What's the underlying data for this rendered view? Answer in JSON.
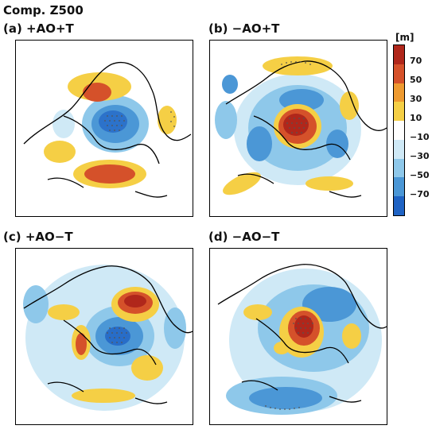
{
  "figure_title": "Comp. Z500",
  "panels": [
    {
      "label": "(a) +AO+T"
    },
    {
      "label": "(b) −AO+T"
    },
    {
      "label": "(c) +AO−T"
    },
    {
      "label": "(d) −AO−T"
    }
  ],
  "colorbar": {
    "unit": "[m]",
    "tick_labels": [
      "70",
      "50",
      "30",
      "10",
      "−10",
      "−30",
      "−50",
      "−70"
    ],
    "colors": [
      "#b0271b",
      "#d5512a",
      "#ee9a30",
      "#f5cf45",
      "#ffffff",
      "#cfe9f6",
      "#8ec8ea",
      "#4b97d6",
      "#1f63c4"
    ]
  },
  "chart_data": [
    {
      "type": "heatmap",
      "title": "(a) +AO+T",
      "colorbar_label": "[m]",
      "color_levels": [
        -70,
        -50,
        -30,
        -10,
        10,
        30,
        50,
        70
      ]
    },
    {
      "type": "heatmap",
      "title": "(b) −AO+T",
      "colorbar_label": "[m]",
      "color_levels": [
        -70,
        -50,
        -30,
        -10,
        10,
        30,
        50,
        70
      ]
    },
    {
      "type": "heatmap",
      "title": "(c) +AO−T",
      "colorbar_label": "[m]",
      "color_levels": [
        -70,
        -50,
        -30,
        -10,
        10,
        30,
        50,
        70
      ]
    },
    {
      "type": "heatmap",
      "title": "(d) −AO−T",
      "colorbar_label": "[m]",
      "color_levels": [
        -70,
        -50,
        -30,
        -10,
        10,
        30,
        50,
        70
      ]
    }
  ]
}
